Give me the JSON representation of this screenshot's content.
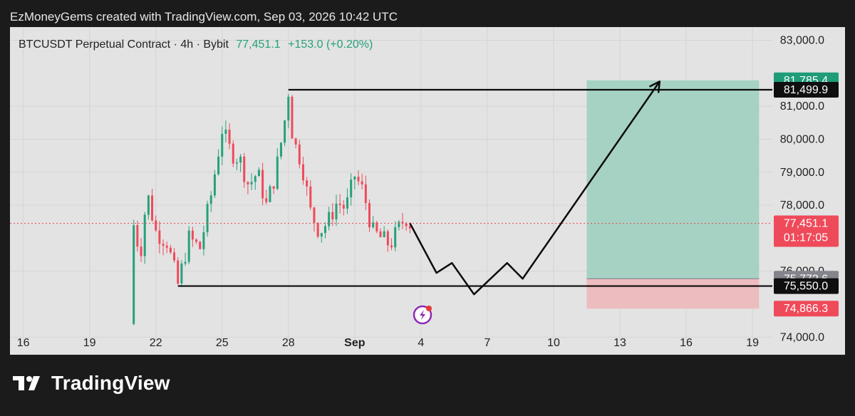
{
  "caption": "EzMoneyGems created with TradingView.com, Sep 03, 2026 10:42 UTC",
  "legend": {
    "title": "BTCUSDT Perpetual Contract · 4h · Bybit",
    "last_price": "77,451.1",
    "change": "+153.0 (+0.20%)"
  },
  "brand": {
    "name": "TradingView"
  },
  "colors": {
    "up": "#26a17b",
    "down": "#ef4a5a",
    "target_zone": "#a6d2c4",
    "stop_zone": "#edbcbe",
    "tag_green": "#1f9c7a",
    "tag_red": "#ef4a5a",
    "tag_black": "#0f0f0f",
    "tag_gray": "#84848c"
  },
  "chart_data": {
    "type": "candlestick",
    "symbol": "BTCUSDT",
    "timeframe": "4h",
    "exchange": "Bybit",
    "x_ticks": [
      {
        "label": "16",
        "day": 16
      },
      {
        "label": "19",
        "day": 19
      },
      {
        "label": "22",
        "day": 22
      },
      {
        "label": "25",
        "day": 25
      },
      {
        "label": "28",
        "day": 28
      },
      {
        "label": "Sep",
        "day": 31,
        "bold": true
      },
      {
        "label": "4",
        "day": 34
      },
      {
        "label": "7",
        "day": 37
      },
      {
        "label": "10",
        "day": 40
      },
      {
        "label": "13",
        "day": 43
      },
      {
        "label": "16",
        "day": 46
      },
      {
        "label": "19",
        "day": 49
      }
    ],
    "y_ticks": [
      "83,000.0",
      "81,000.0",
      "80,000.0",
      "79,000.0",
      "78,000.0",
      "76,000.0",
      "74,000.0"
    ],
    "y_tick_values": [
      83000,
      81000,
      80000,
      79000,
      78000,
      76000,
      74000
    ],
    "ylim": [
      73900,
      83400
    ],
    "xlim": [
      15.4,
      49.9
    ],
    "candle_keys": [
      [
        21.0,
        77400
      ],
      [
        21.3,
        76500
      ],
      [
        21.6,
        78400
      ],
      [
        22.0,
        77200
      ],
      [
        22.5,
        76900
      ],
      [
        23.0,
        75600
      ],
      [
        23.5,
        77000
      ],
      [
        24.0,
        76700
      ],
      [
        24.5,
        78300
      ],
      [
        25.0,
        80300
      ],
      [
        25.4,
        79600
      ],
      [
        25.8,
        79400
      ],
      [
        26.2,
        78600
      ],
      [
        26.6,
        79000
      ],
      [
        27.0,
        78000
      ],
      [
        27.4,
        78900
      ],
      [
        27.8,
        80400
      ],
      [
        28.0,
        81450
      ],
      [
        28.2,
        80000
      ],
      [
        28.6,
        79300
      ],
      [
        29.0,
        77800
      ],
      [
        29.4,
        77200
      ],
      [
        29.8,
        77500
      ],
      [
        30.2,
        78100
      ],
      [
        30.6,
        77900
      ],
      [
        31.0,
        78900
      ],
      [
        31.4,
        78400
      ],
      [
        31.8,
        77200
      ],
      [
        32.2,
        77000
      ],
      [
        32.6,
        76800
      ],
      [
        33.0,
        77300
      ],
      [
        33.3,
        77650
      ],
      [
        33.5,
        77451
      ]
    ],
    "last_price": 77451.1,
    "position": {
      "type": "long",
      "entry": 75772.6,
      "target": 81785.4,
      "stop": 74866.3,
      "start_day": 41.5,
      "end_day": 49.3
    },
    "levels": [
      {
        "name": "resistance",
        "value": 81499.9,
        "start_day": 28.0
      },
      {
        "name": "support",
        "value": 75550.0,
        "start_day": 23.0
      }
    ],
    "projection_path": [
      [
        33.5,
        77451
      ],
      [
        34.7,
        75950
      ],
      [
        35.4,
        76250
      ],
      [
        36.4,
        75300
      ],
      [
        37.9,
        76250
      ],
      [
        38.6,
        75772.6
      ],
      [
        44.8,
        81750
      ]
    ],
    "price_tags": [
      {
        "label": "81,785.4",
        "value": 81785.4,
        "style": "green"
      },
      {
        "label": "81,499.9",
        "value": 81499.9,
        "style": "black"
      },
      {
        "label": "77,451.1",
        "sub": "01:17:05",
        "value": 77451.1,
        "style": "red"
      },
      {
        "label": "75,772.6",
        "value": 75772.6,
        "style": "gray"
      },
      {
        "label": "75,550.0",
        "value": 75550.0,
        "style": "black"
      },
      {
        "label": "74,866.3",
        "value": 74866.3,
        "style": "red"
      }
    ]
  }
}
